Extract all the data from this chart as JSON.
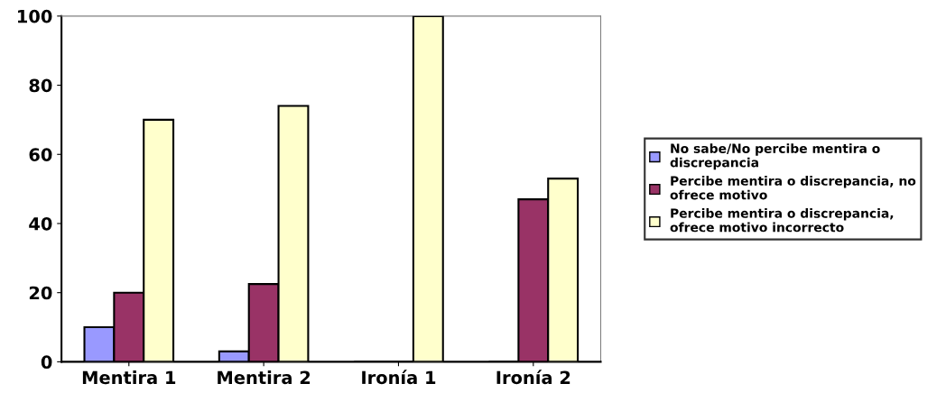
{
  "chart_data": {
    "type": "bar",
    "categories": [
      "Mentira 1",
      "Mentira 2",
      "Ironía 1",
      "Ironía 2"
    ],
    "series": [
      {
        "name": "No sabe/No percibe mentira o discrepancia",
        "color": "#9999ff",
        "values": [
          10,
          3,
          0,
          0
        ]
      },
      {
        "name": "Percibe mentira o discrepancia, no ofrece motivo",
        "color": "#993366",
        "values": [
          20,
          22.5,
          0,
          47
        ]
      },
      {
        "name": "Percibe mentira o discrepancia, ofrece motivo incorrecto",
        "color": "#ffffcc",
        "values": [
          70,
          74,
          100,
          53
        ]
      }
    ],
    "ylim": [
      0,
      100
    ],
    "yticks": [
      0,
      20,
      40,
      60,
      80,
      100
    ],
    "grid": false,
    "legend": "right"
  }
}
